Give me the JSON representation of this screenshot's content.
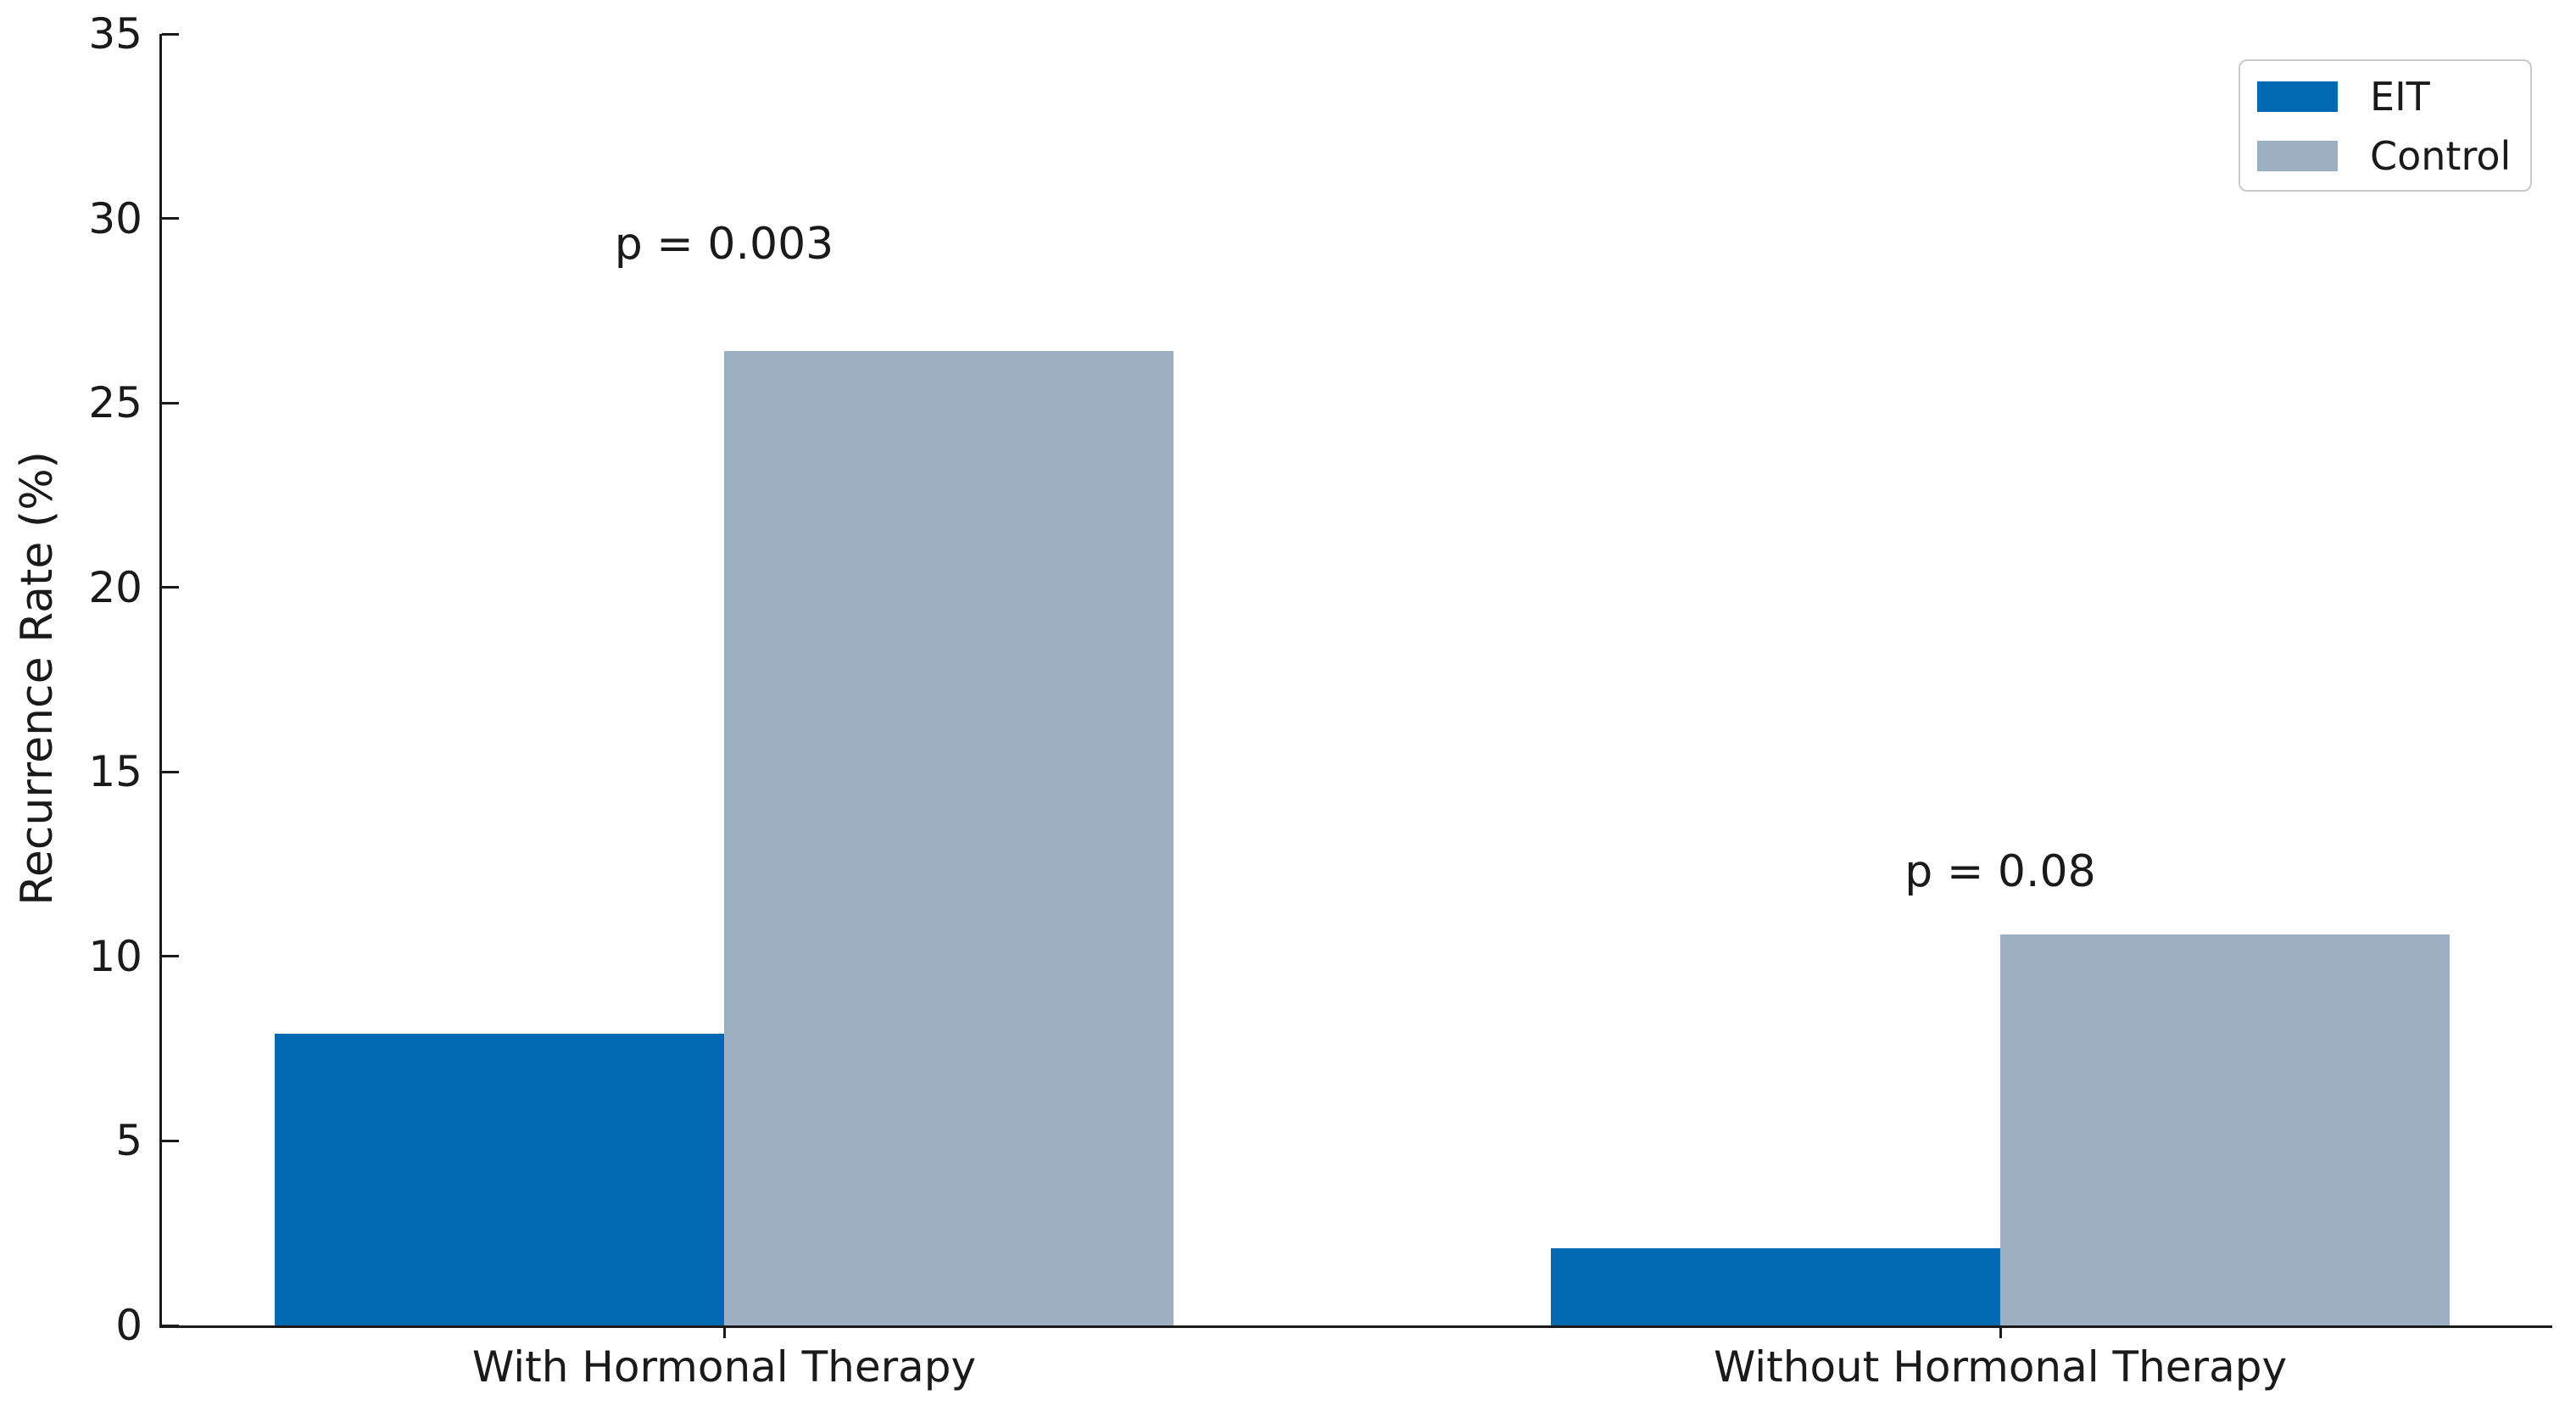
{
  "chart_data": {
    "type": "bar",
    "title": "",
    "xlabel": "",
    "ylabel": "Recurrence Rate (%)",
    "categories": [
      "With Hormonal Therapy",
      "Without Hormonal Therapy"
    ],
    "series": [
      {
        "name": "EIT",
        "color": "#0069b1",
        "values": [
          7.9,
          2.1
        ]
      },
      {
        "name": "Control",
        "color": "#9dafc3",
        "values": [
          26.4,
          10.6
        ]
      }
    ],
    "annotations": [
      {
        "text": "p = 0.003",
        "category_index": 0,
        "y_value": 29.3
      },
      {
        "text": "p = 0.08",
        "category_index": 1,
        "y_value": 12.3
      }
    ],
    "ylim": [
      0,
      35
    ],
    "yticks": [
      0,
      5,
      10,
      15,
      20,
      25,
      30,
      35
    ],
    "grid": false,
    "legend_position": "upper right",
    "axis_color": "#1a1a1a",
    "background_color": "#ffffff"
  }
}
